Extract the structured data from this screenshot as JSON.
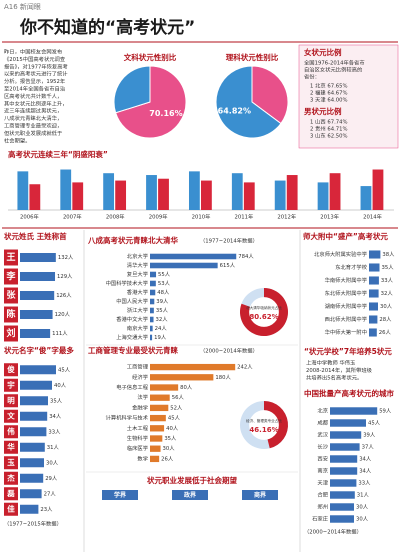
{
  "header": {
    "page": "A16 新闻眼",
    "title": "你不知道的“高考状元”"
  },
  "intro": [
    "昨日，中国校友会网发布",
    "《2015中国高考状元调查",
    "报告》，对1977年恢复高考",
    "以来的高考状元进行了统计",
    "分析。报告显示，1952年",
    "至2014年全国各省市自治",
    "区高考状元共计数千人，",
    "其中女状元比例逐年上升，",
    "近三年连续超过男状元，",
    "八成状元青睐北大清华，",
    "工商管理专业最受欢迎，",
    "但状元职业发展成就低于",
    "社会期望。"
  ],
  "sidebar": {
    "female_title": "女状元比例",
    "female_note": [
      "全国1976-2014年各省市",
      "自治区女状元比例较高的",
      "省份："
    ],
    "female_list": [
      "1 北京 67.65%",
      "2 福建 64.67%",
      "3 天津 64.00%"
    ],
    "male_title": "男状元比例",
    "male_list": [
      "1 山西 67.74%",
      "2 贵州 64.71%",
      "3 山东 62.50%"
    ]
  },
  "school_note": {
    "title": "“状元学校”7年培养5状元",
    "lines": [
      "上海中学教师 华伟玉",
      "2008-2014年，其所带班级",
      "共培养出5名高考状元。"
    ]
  },
  "career": {
    "title": "状元职业发展低于社会期望",
    "columns": [
      "学界",
      "政界",
      "商界"
    ]
  },
  "chart_data": [
    {
      "type": "pie",
      "title": "文科状元性别比",
      "values": [
        70.16,
        29.84
      ],
      "value_labels": [
        "70.16%",
        null
      ],
      "colors": [
        "#e8508a",
        "#3a8fd0"
      ]
    },
    {
      "type": "pie",
      "title": "理科状元性别比",
      "values": [
        35.18,
        64.82
      ],
      "value_labels": [
        null,
        "64.82%"
      ],
      "colors": [
        "#e8508a",
        "#3a8fd0"
      ]
    },
    {
      "type": "bar",
      "title": "高考状元连续三年“阴盛阳衰”",
      "categories": [
        "2006年",
        "2007年",
        "2008年",
        "2009年",
        "2010年",
        "2011年",
        "2012年",
        "2013年",
        "2014年"
      ],
      "series": [
        {
          "color": "#3a8fd0",
          "values": [
            21,
            22,
            20,
            19,
            21,
            20,
            16,
            15,
            13
          ]
        },
        {
          "color": "#d8263a",
          "values": [
            14,
            15,
            16,
            17,
            16,
            15,
            19,
            20,
            22
          ]
        }
      ],
      "ylim": [
        0,
        25
      ]
    },
    {
      "type": "hbar",
      "title": "状元姓氏 王姓称首",
      "categories": [
        "王",
        "李",
        "张",
        "陈",
        "刘"
      ],
      "values": [
        132,
        129,
        126,
        120,
        111
      ],
      "value_labels": [
        "132人",
        "129人",
        "126人",
        "120人",
        "111人"
      ],
      "xlim": [
        0,
        140
      ],
      "color": "#3a6fb6"
    },
    {
      "type": "hbar",
      "title": "状元名字“俊”字最多",
      "categories": [
        "俊",
        "宇",
        "明",
        "文",
        "伟",
        "华",
        "玉",
        "杰",
        "磊",
        "佳"
      ],
      "values": [
        45,
        40,
        35,
        34,
        33,
        31,
        30,
        29,
        27,
        23
      ],
      "value_labels": [
        "45人",
        "40人",
        "35人",
        "34人",
        "33人",
        "31人",
        "30人",
        "29人",
        "27人",
        "23人"
      ],
      "xlim": [
        0,
        50
      ],
      "color": "#3a6fb6",
      "note": "（1977~2015年数据）"
    },
    {
      "type": "hbar",
      "title": "八成高考状元青睐北大清华",
      "subtitle": "（1977~2014年数据）",
      "categories": [
        "北京大学",
        "清华大学",
        "复旦大学",
        "中国科学技术大学",
        "香港大学",
        "中国人民大学",
        "浙江大学",
        "香港中文大学",
        "南京大学",
        "上海交通大学"
      ],
      "values": [
        784,
        615,
        55,
        53,
        48,
        39,
        35,
        32,
        24,
        19
      ],
      "value_labels": [
        "784人",
        "615人",
        "55人",
        "53人",
        "48人",
        "39人",
        "35人",
        "32人",
        "24人",
        "19人"
      ],
      "xlim": [
        0,
        800
      ],
      "color": "#3a6fb6",
      "share": {
        "label": "北大清华吸纳状元占比",
        "value": 80.62,
        "value_label": "80.62%"
      }
    },
    {
      "type": "hbar",
      "title": "工商管理专业最受状元青睐",
      "subtitle": "（2000~2014年数据）",
      "categories": [
        "工商管理",
        "经济学",
        "电子信息工程",
        "法学",
        "金融学",
        "计算机科学与技术",
        "土木工程",
        "生物科学",
        "临床医学",
        "数学"
      ],
      "values": [
        242,
        180,
        80,
        56,
        52,
        45,
        40,
        35,
        30,
        26
      ],
      "value_labels": [
        "242人",
        "180人",
        "80人",
        "56人",
        "52人",
        "45人",
        "40人",
        "35人",
        "30人",
        "26人"
      ],
      "xlim": [
        0,
        250
      ],
      "color": "#e07a2a",
      "share": {
        "label": "经济、管理类专业占比",
        "value": 46.16,
        "value_label": "46.16%"
      }
    },
    {
      "type": "hbar",
      "title": "师大附中“盛产”高考状元",
      "categories": [
        "北京师大附属实验中学",
        "东北育才学校",
        "华南师大附属中学",
        "东北师大附属中学",
        "湖南师大附属中学",
        "西北师大附属中学",
        "华中师大第一附中"
      ],
      "values": [
        38,
        35,
        33,
        32,
        30,
        28,
        26
      ],
      "value_labels": [
        "38人",
        "35人",
        "33人",
        "32人",
        "30人",
        "28人",
        "26人"
      ],
      "xlim": [
        0,
        40
      ],
      "color": "#3a6fb6"
    },
    {
      "type": "hbar",
      "title": "中国批量产高考状元的城市",
      "categories": [
        "北京",
        "成都",
        "武汉",
        "长沙",
        "西安",
        "南京",
        "天津",
        "合肥",
        "郑州",
        "石家庄"
      ],
      "values": [
        59,
        45,
        39,
        37,
        34,
        34,
        33,
        31,
        30,
        30
      ],
      "value_labels": [
        "59人",
        "45人",
        "39人",
        "37人",
        "34人",
        "34人",
        "33人",
        "31人",
        "30人",
        "30人"
      ],
      "xlim": [
        0,
        60
      ],
      "color": "#3a6fb6",
      "note": "（2000~2014年数据）"
    }
  ]
}
